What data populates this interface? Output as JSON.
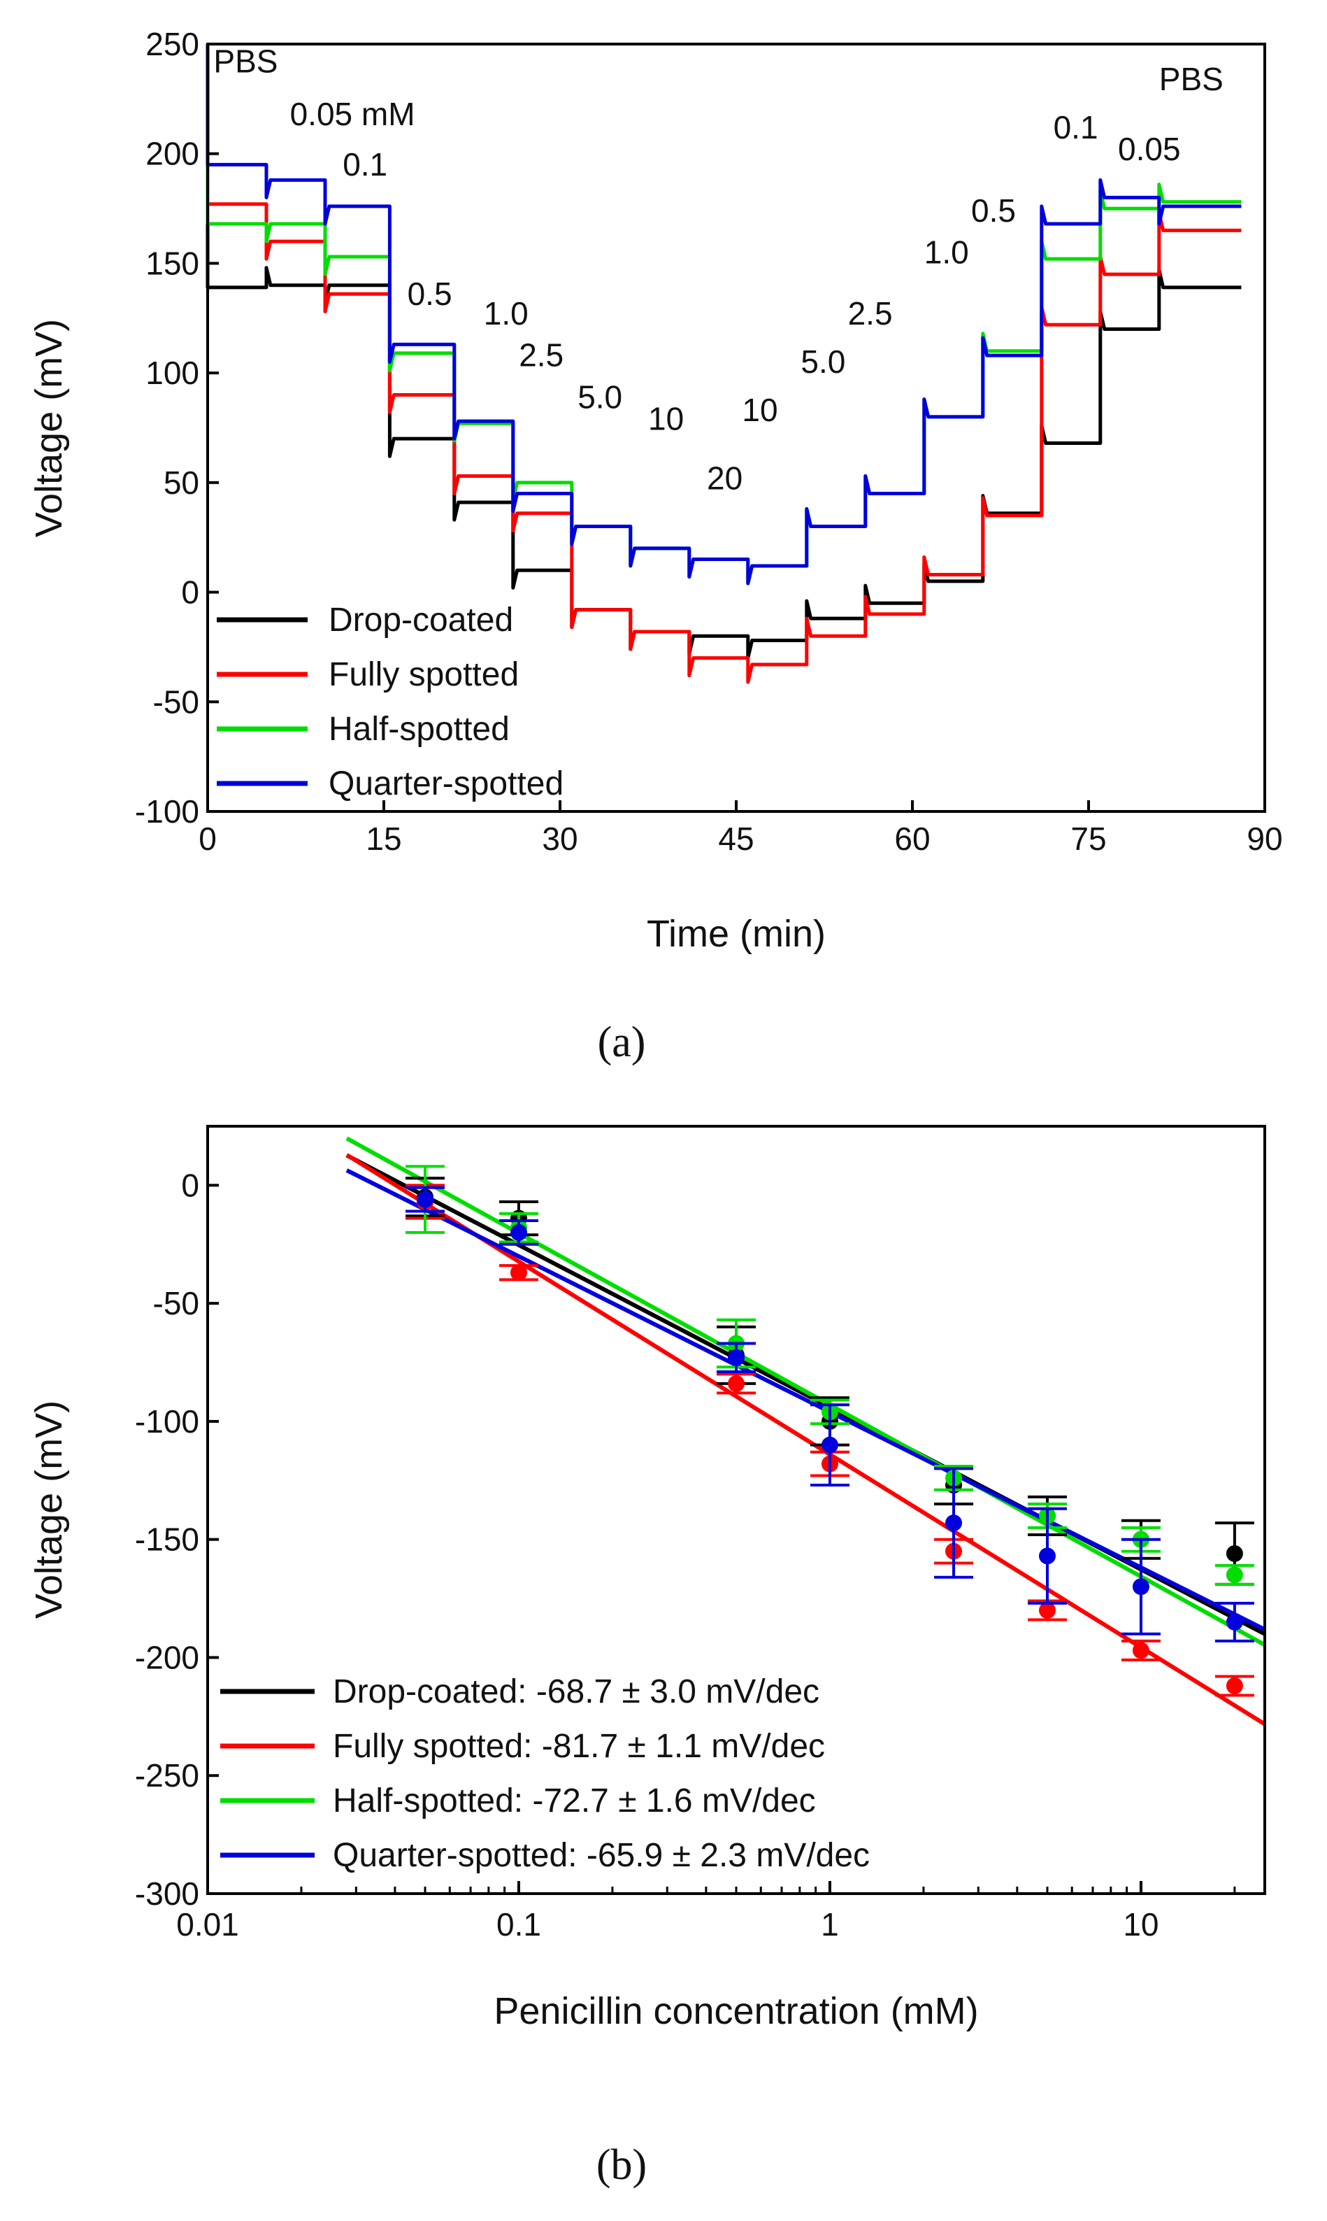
{
  "chart_data": [
    {
      "type": "line",
      "panel_label": "(a)",
      "xlabel": "Time (min)",
      "ylabel": "Voltage (mV)",
      "xlim": [
        0,
        90
      ],
      "ylim": [
        -100,
        250
      ],
      "xticks": [
        0,
        15,
        30,
        45,
        60,
        75,
        90
      ],
      "yticks": [
        -100,
        -50,
        0,
        50,
        100,
        150,
        200,
        250
      ],
      "legend_position": "bottom-left",
      "series": [
        {
          "name": "Drop-coated",
          "color": "#000000",
          "steps": [
            [
              0,
              139
            ],
            [
              5,
              140
            ],
            [
              10,
              140
            ],
            [
              15.5,
              70
            ],
            [
              21,
              41
            ],
            [
              26,
              10
            ],
            [
              31,
              -8
            ],
            [
              36,
              -18
            ],
            [
              41,
              -20
            ],
            [
              46,
              -22
            ],
            [
              51,
              -12
            ],
            [
              56,
              -5
            ],
            [
              61,
              5
            ],
            [
              66,
              36
            ],
            [
              71,
              68
            ],
            [
              76,
              120
            ],
            [
              81,
              139
            ],
            [
              88,
              138
            ]
          ]
        },
        {
          "name": "Fully spotted",
          "color": "#ff0000",
          "steps": [
            [
              0,
              177
            ],
            [
              5,
              160
            ],
            [
              10,
              136
            ],
            [
              15.5,
              90
            ],
            [
              21,
              53
            ],
            [
              26,
              36
            ],
            [
              31,
              -8
            ],
            [
              36,
              -18
            ],
            [
              41,
              -30
            ],
            [
              46,
              -33
            ],
            [
              51,
              -20
            ],
            [
              56,
              -10
            ],
            [
              61,
              8
            ],
            [
              66,
              35
            ],
            [
              71,
              122
            ],
            [
              76,
              145
            ],
            [
              81,
              165
            ],
            [
              88,
              165
            ]
          ]
        },
        {
          "name": "Half-spotted",
          "color": "#00dd00",
          "steps": [
            [
              0,
              168
            ],
            [
              5,
              168
            ],
            [
              10,
              153
            ],
            [
              15.5,
              109
            ],
            [
              21,
              77
            ],
            [
              26,
              50
            ],
            [
              31,
              30
            ],
            [
              36,
              20
            ],
            [
              41,
              15
            ],
            [
              46,
              12
            ],
            [
              51,
              30
            ],
            [
              56,
              45
            ],
            [
              61,
              80
            ],
            [
              66,
              110
            ],
            [
              71,
              152
            ],
            [
              76,
              175
            ],
            [
              81,
              178
            ],
            [
              88,
              177
            ]
          ]
        },
        {
          "name": "Quarter-spotted",
          "color": "#0000dd",
          "steps": [
            [
              0,
              195
            ],
            [
              5,
              188
            ],
            [
              10,
              176
            ],
            [
              15.5,
              113
            ],
            [
              21,
              78
            ],
            [
              26,
              45
            ],
            [
              31,
              30
            ],
            [
              36,
              20
            ],
            [
              41,
              15
            ],
            [
              46,
              12
            ],
            [
              51,
              30
            ],
            [
              56,
              45
            ],
            [
              61,
              80
            ],
            [
              66,
              108
            ],
            [
              71,
              168
            ],
            [
              76,
              180
            ],
            [
              81,
              176
            ],
            [
              88,
              175
            ]
          ]
        }
      ],
      "annotations": [
        {
          "text": "PBS",
          "x": 0.5,
          "y": 237
        },
        {
          "text": "0.05 mM",
          "x": 7,
          "y": 213
        },
        {
          "text": "0.1",
          "x": 11.5,
          "y": 190
        },
        {
          "text": "0.5",
          "x": 17,
          "y": 131
        },
        {
          "text": "1.0",
          "x": 23.5,
          "y": 122
        },
        {
          "text": "2.5",
          "x": 26.5,
          "y": 103
        },
        {
          "text": "5.0",
          "x": 31.5,
          "y": 84
        },
        {
          "text": "10",
          "x": 37.5,
          "y": 74
        },
        {
          "text": "20",
          "x": 42.5,
          "y": 47
        },
        {
          "text": "10",
          "x": 45.5,
          "y": 78
        },
        {
          "text": "5.0",
          "x": 50.5,
          "y": 100
        },
        {
          "text": "2.5",
          "x": 54.5,
          "y": 122
        },
        {
          "text": "1.0",
          "x": 61,
          "y": 150
        },
        {
          "text": "0.5",
          "x": 65,
          "y": 169
        },
        {
          "text": "0.1",
          "x": 72,
          "y": 207
        },
        {
          "text": "0.05",
          "x": 77.5,
          "y": 197
        },
        {
          "text": "PBS",
          "x": 81,
          "y": 229
        }
      ]
    },
    {
      "type": "scatter",
      "panel_label": "(b)",
      "xlabel": "Penicillin concentration (mM)",
      "ylabel": "Voltage (mV)",
      "xscale": "log",
      "xlim": [
        0.01,
        25
      ],
      "ylim": [
        -300,
        25
      ],
      "xticks": [
        0.01,
        0.1,
        1,
        10
      ],
      "xtick_labels": [
        "0.01",
        "0.1",
        "1",
        "10"
      ],
      "yticks": [
        -300,
        -250,
        -200,
        -150,
        -100,
        -50,
        0
      ],
      "legend_position": "bottom-left",
      "x": [
        0.05,
        0.1,
        0.5,
        1,
        2.5,
        5,
        10,
        20
      ],
      "series": [
        {
          "name": "Drop-coated",
          "label": "Drop-coated: -68.7 ± 3.0 mV/dec",
          "color": "#000000",
          "values": [
            -5,
            -14,
            -72,
            -100,
            -127,
            -140,
            -150,
            -156
          ],
          "errors": [
            8,
            7,
            12,
            10,
            8,
            8,
            8,
            13
          ],
          "fit": {
            "slope": -68.7,
            "intercept": -94
          }
        },
        {
          "name": "Fully spotted",
          "label": "Fully spotted: -81.7 ± 1.1 mV/dec",
          "color": "#ff0000",
          "values": [
            -7,
            -37,
            -84,
            -118,
            -155,
            -180,
            -197,
            -212
          ],
          "errors": [
            7,
            3,
            4,
            5,
            5,
            4,
            4,
            4
          ],
          "fit": {
            "slope": -81.7,
            "intercept": -114
          }
        },
        {
          "name": "Half-spotted",
          "label": "Half-spotted: -72.7 ± 1.6 mV/dec",
          "color": "#00dd00",
          "values": [
            -6,
            -18,
            -67,
            -96,
            -124,
            -140,
            -150,
            -165
          ],
          "errors": [
            14,
            6,
            10,
            5,
            5,
            5,
            5,
            4
          ],
          "fit": {
            "slope": -72.7,
            "intercept": -93
          }
        },
        {
          "name": "Quarter-spotted",
          "label": "Quarter-spotted: -65.9 ± 2.3 mV/dec",
          "color": "#0000dd",
          "values": [
            -6,
            -20,
            -73,
            -110,
            -143,
            -157,
            -170,
            -185
          ],
          "errors": [
            5,
            5,
            6,
            17,
            23,
            20,
            20,
            8
          ],
          "fit": {
            "slope": -65.9,
            "intercept": -96
          }
        }
      ]
    }
  ]
}
